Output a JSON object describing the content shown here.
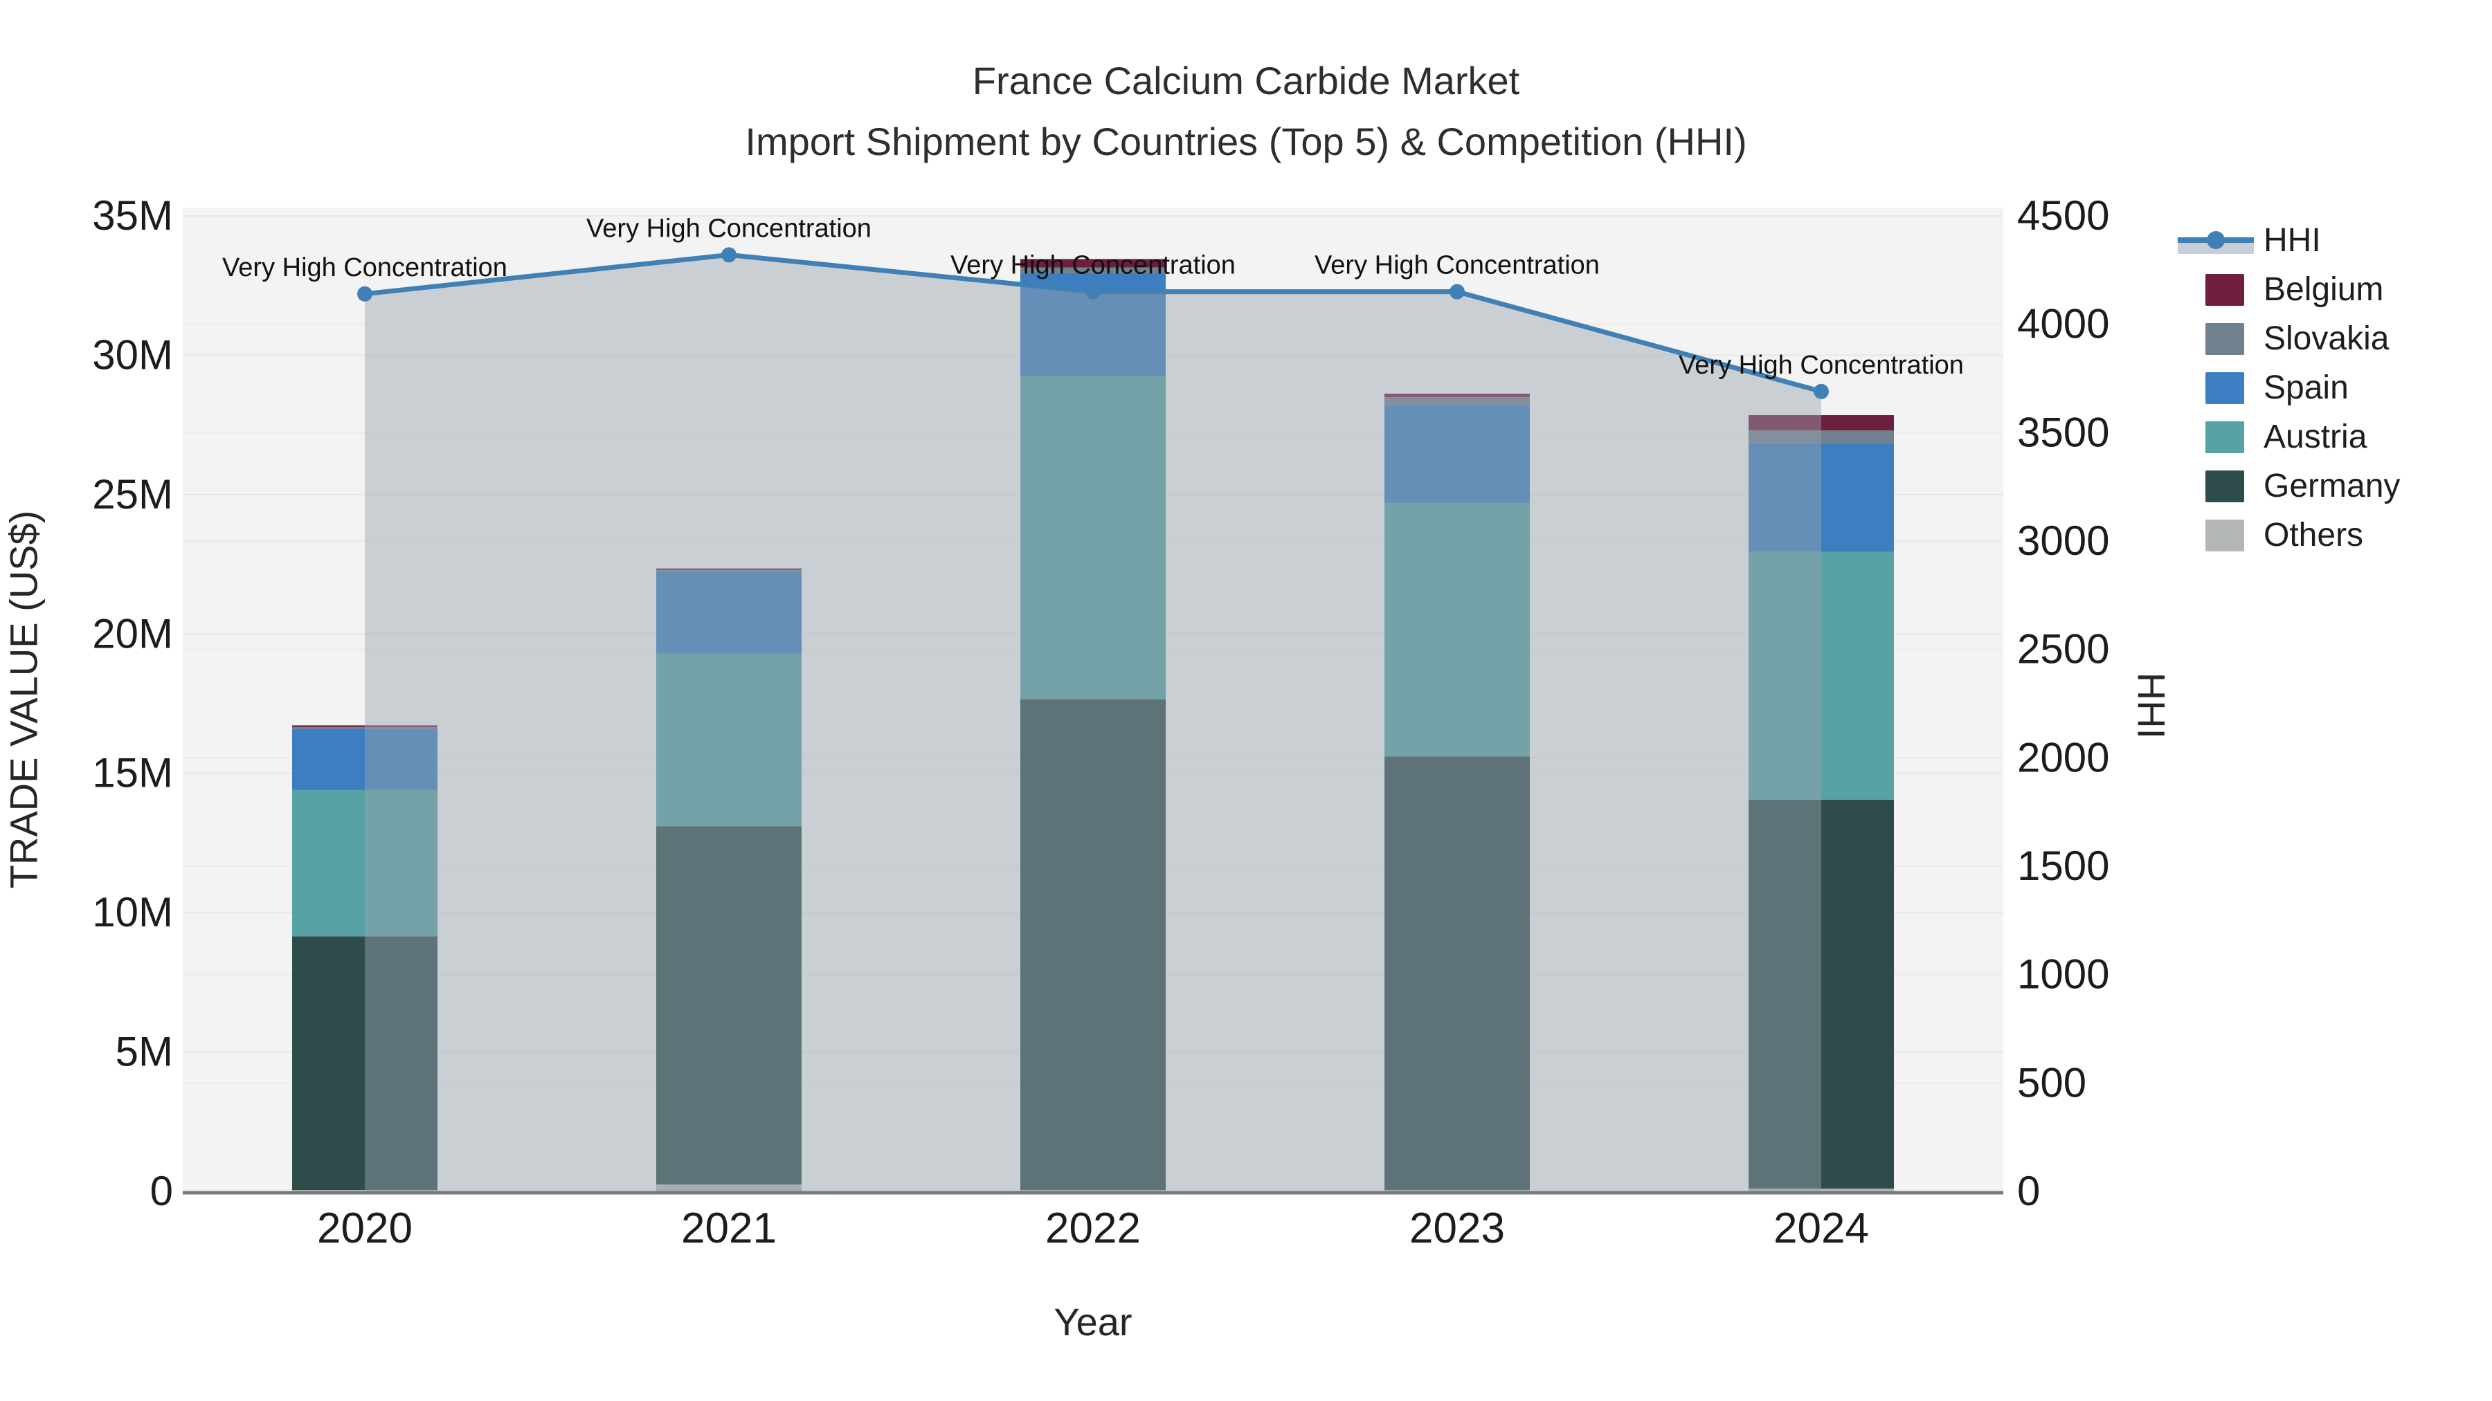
{
  "title": {
    "line1": "France Calcium Carbide Market",
    "line2": "Import Shipment by Countries (Top 5) & Competition (HHI)"
  },
  "axes": {
    "x": {
      "title": "Year",
      "categories": [
        "2020",
        "2021",
        "2022",
        "2023",
        "2024"
      ]
    },
    "y_left": {
      "title": "TRADE VALUE (US$)",
      "tick_labels": [
        "0",
        "5M",
        "10M",
        "15M",
        "20M",
        "25M",
        "30M",
        "35M"
      ],
      "lim_millions": [
        0,
        35
      ]
    },
    "y_right": {
      "title": "HHI",
      "tick_labels": [
        "0",
        "500",
        "1000",
        "1500",
        "2000",
        "2500",
        "3000",
        "3500",
        "4000",
        "4500"
      ],
      "lim": [
        0,
        4500
      ]
    }
  },
  "annotations": {
    "text": "Very High Concentration"
  },
  "legend": {
    "items": [
      {
        "label": "HHI",
        "type": "line",
        "color": "#4180b5",
        "band_color": "#c9cdd6"
      },
      {
        "label": "Belgium",
        "type": "bar",
        "color": "#6e1e3f"
      },
      {
        "label": "Slovakia",
        "type": "bar",
        "color": "#70808f"
      },
      {
        "label": "Spain",
        "type": "bar",
        "color": "#3d7ec0"
      },
      {
        "label": "Austria",
        "type": "bar",
        "color": "#58a1a4"
      },
      {
        "label": "Germany",
        "type": "bar",
        "color": "#2e4c49"
      },
      {
        "label": "Others",
        "type": "bar",
        "color": "#b3b7b3"
      }
    ]
  },
  "chart_data": {
    "type": "bar",
    "subtype": "stacked-bar-with-line",
    "title": "France Calcium Carbide Market — Import Shipment by Countries (Top 5) & Competition (HHI)",
    "xlabel": "Year",
    "ylabel": "TRADE VALUE (US$)",
    "y2label": "HHI",
    "categories": [
      "2020",
      "2021",
      "2022",
      "2023",
      "2024"
    ],
    "bar_value_unit": "million US$",
    "ylim_millions": [
      0,
      35
    ],
    "y2lim": [
      0,
      4500
    ],
    "grid": "on",
    "legend_position": "right",
    "series": [
      {
        "name": "Others",
        "color": "#b3b7b3",
        "values": [
          0.05,
          0.25,
          0.05,
          0.05,
          0.1
        ]
      },
      {
        "name": "Germany",
        "color": "#2e4c49",
        "values": [
          9.1,
          12.85,
          17.6,
          15.55,
          13.95
        ]
      },
      {
        "name": "Austria",
        "color": "#58a1a4",
        "values": [
          5.25,
          6.2,
          11.6,
          9.1,
          8.9
        ]
      },
      {
        "name": "Spain",
        "color": "#3d7ec0",
        "values": [
          2.2,
          2.95,
          3.7,
          3.5,
          3.9
        ]
      },
      {
        "name": "Slovakia",
        "color": "#70808f",
        "values": [
          0.06,
          0.05,
          0.2,
          0.3,
          0.45
        ]
      },
      {
        "name": "Belgium",
        "color": "#6e1e3f",
        "values": [
          0.06,
          0.05,
          0.3,
          0.12,
          0.55
        ]
      }
    ],
    "line_series": {
      "name": "HHI",
      "color": "#4180b5",
      "area_fill": "rgba(154,163,176,0.45)",
      "values": [
        4140,
        4320,
        4150,
        4150,
        3690
      ],
      "point_annotation": "Very High Concentration"
    }
  }
}
